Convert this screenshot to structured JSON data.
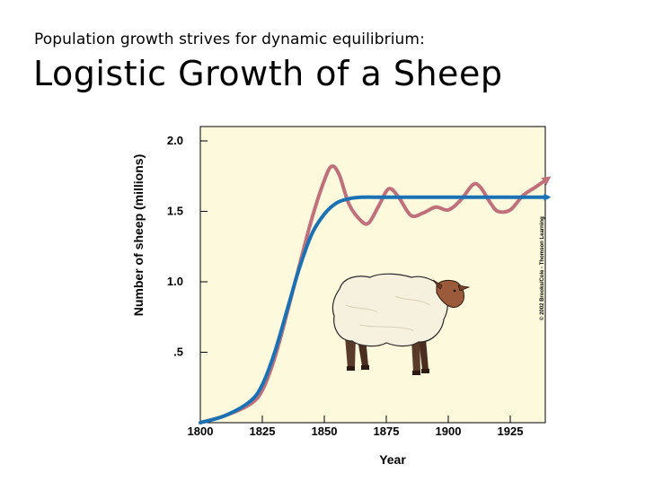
{
  "slide": {
    "subtitle": "Population growth strives for dynamic equilibrium:",
    "title": "Logistic Growth of a Sheep"
  },
  "chart_data": {
    "type": "line",
    "title": "",
    "xlabel": "Year",
    "ylabel": "Number of sheep (millions)",
    "xlim": [
      1800,
      1940
    ],
    "ylim": [
      0,
      2.0
    ],
    "x_ticks": [
      1800,
      1825,
      1850,
      1875,
      1900,
      1925
    ],
    "x_tick_labels": [
      "1800",
      "1825",
      "1850",
      "1875",
      "1900",
      "1925"
    ],
    "y_ticks": [
      0.5,
      1.0,
      1.5,
      2.0
    ],
    "y_tick_labels": [
      ".5",
      "1.0",
      "1.5",
      "2.0"
    ],
    "background": "#fdf9dd",
    "credit": "© 2002 Brooks/Cole - Thomson Learning",
    "series": [
      {
        "color": "#1a72b4",
        "x": [
          1800,
          1810,
          1820,
          1825,
          1830,
          1835,
          1840,
          1845,
          1850,
          1855,
          1860,
          1865,
          1875,
          1900,
          1925,
          1940
        ],
        "y": [
          0.0,
          0.05,
          0.15,
          0.27,
          0.5,
          0.8,
          1.1,
          1.34,
          1.48,
          1.56,
          1.59,
          1.6,
          1.6,
          1.6,
          1.6,
          1.6
        ]
      },
      {
        "color": "#c0707b",
        "x": [
          1800,
          1810,
          1820,
          1825,
          1830,
          1835,
          1840,
          1845,
          1850,
          1853,
          1856,
          1860,
          1865,
          1868,
          1872,
          1876,
          1880,
          1885,
          1890,
          1895,
          1900,
          1905,
          1910,
          1913,
          1917,
          1920,
          1925,
          1930,
          1935,
          1940
        ],
        "y": [
          0.0,
          0.05,
          0.13,
          0.23,
          0.46,
          0.78,
          1.12,
          1.45,
          1.72,
          1.82,
          1.76,
          1.55,
          1.43,
          1.42,
          1.54,
          1.66,
          1.6,
          1.47,
          1.49,
          1.53,
          1.51,
          1.58,
          1.69,
          1.67,
          1.56,
          1.5,
          1.51,
          1.61,
          1.67,
          1.73
        ]
      }
    ]
  }
}
